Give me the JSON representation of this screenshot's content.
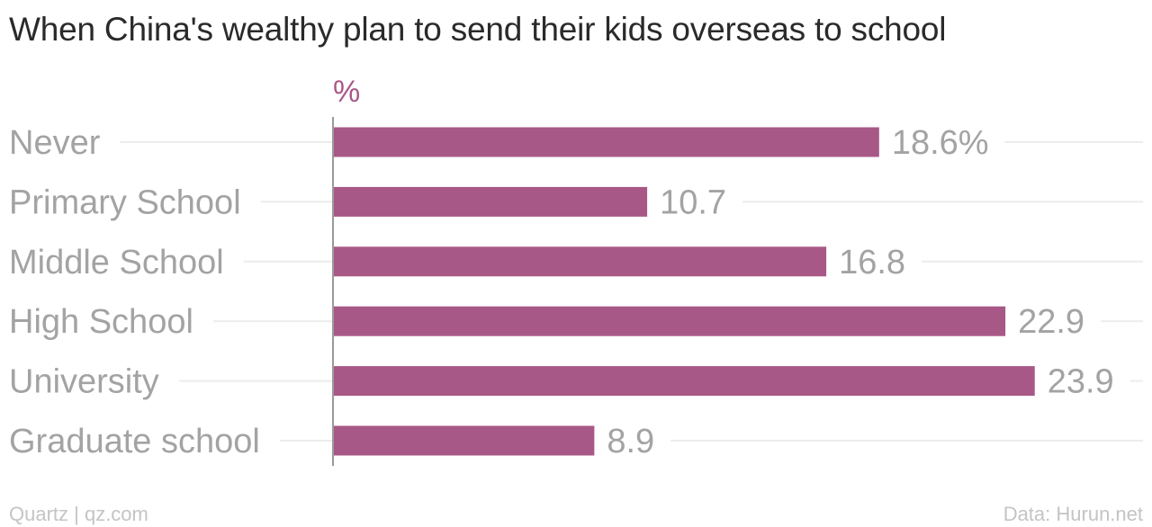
{
  "chart_data": {
    "type": "bar",
    "orientation": "horizontal",
    "title": "When China's wealthy plan to send their kids overseas to school",
    "unit_label": "%",
    "categories": [
      "Never",
      "Primary School",
      "Middle School",
      "High School",
      "University",
      "Graduate school"
    ],
    "values": [
      18.6,
      10.7,
      16.8,
      22.9,
      23.9,
      8.9
    ],
    "value_labels": [
      "18.6%",
      "10.7",
      "16.8",
      "22.9",
      "23.9",
      "8.9"
    ],
    "xlim": [
      0,
      25
    ],
    "grid": true,
    "legend": "none",
    "colors": {
      "bar": "#a85886",
      "unit_label": "#a85886",
      "category_label": "#a3a3a3",
      "value_label": "#a3a3a3",
      "gridline": "#ececec",
      "axis": "#9a9a9a"
    }
  },
  "footer": {
    "source_left": "Quartz | qz.com",
    "source_right": "Data: Hurun.net"
  }
}
